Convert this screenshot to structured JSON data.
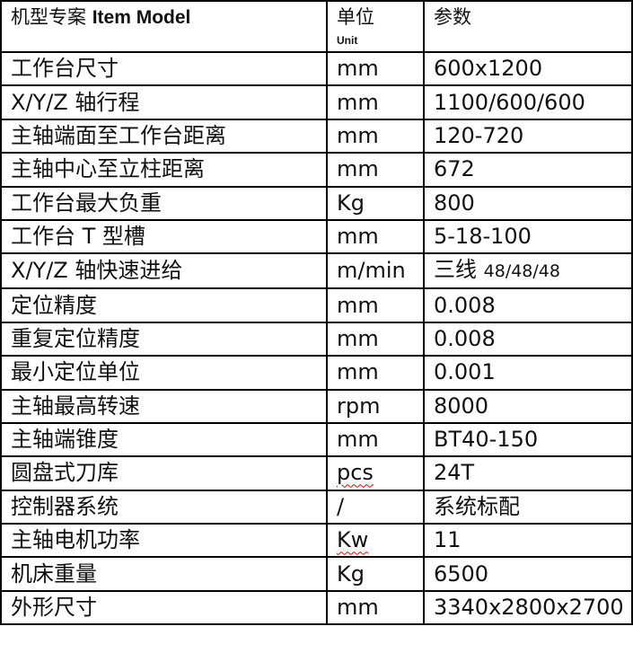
{
  "header": {
    "item_cn": "机型专案",
    "item_en": "Item Model",
    "unit_cn": "单位",
    "unit_en": "Unit",
    "param": "参数"
  },
  "rows": [
    {
      "item": "工作台尺寸",
      "unit": "mm",
      "value": "600x1200"
    },
    {
      "item": "X/Y/Z 轴行程",
      "unit": "mm",
      "value": "1100/600/600"
    },
    {
      "item": "主轴端面至工作台距离",
      "unit": "mm",
      "value": "120-720"
    },
    {
      "item": "主轴中心至立柱距离",
      "unit": "mm",
      "value": "672"
    },
    {
      "item": "工作台最大负重",
      "unit": "Kg",
      "value": "800"
    },
    {
      "item": "工作台 T 型槽",
      "unit": "mm",
      "value": "5-18-100"
    },
    {
      "item": "X/Y/Z 轴快速进给",
      "unit": "m/min",
      "value_prefix": "三线",
      "value": "48/48/48"
    },
    {
      "item": "定位精度",
      "unit": "mm",
      "value": "0.008"
    },
    {
      "item": "重复定位精度",
      "unit": "mm",
      "value": "0.008"
    },
    {
      "item": "最小定位单位",
      "unit": "mm",
      "value": "0.001"
    },
    {
      "item": "主轴最高转速",
      "unit": "rpm",
      "value": "8000"
    },
    {
      "item": "主轴端锥度",
      "unit": "mm",
      "value": "BT40-150"
    },
    {
      "item": "圆盘式刀库",
      "unit": "pcs",
      "value": "24T"
    },
    {
      "item": "控制器系统",
      "unit": "/",
      "value": "系统标配"
    },
    {
      "item": "主轴电机功率",
      "unit": "Kw",
      "value": "11"
    },
    {
      "item": "机床重量",
      "unit": "Kg",
      "value": "6500"
    },
    {
      "item": "外形尺寸",
      "unit": "mm",
      "value": "3340x2800x2700"
    }
  ]
}
